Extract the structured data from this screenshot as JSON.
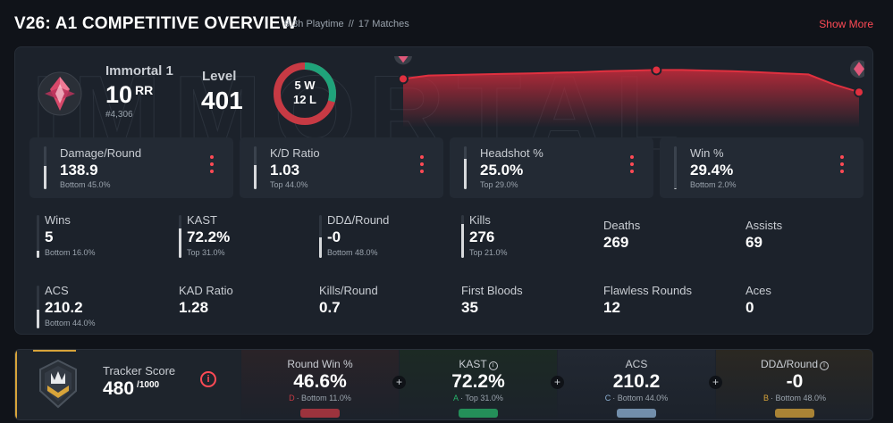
{
  "header": {
    "title": "V26: A1 COMPETITIVE OVERVIEW",
    "playtime": "9.3h Playtime",
    "separator": "//",
    "matches": "17 Matches",
    "show_more": "Show More"
  },
  "colors": {
    "accent": "#ff4a55",
    "win": "#1fa37a",
    "loss": "#c73a44",
    "gold": "#d8a43a"
  },
  "rank": {
    "name": "Immortal 1",
    "rr_value": "10",
    "rr_unit": "RR",
    "leaderboard": "#4,306",
    "level_label": "Level",
    "level_value": "401",
    "icon": "immortal-rank-icon"
  },
  "record": {
    "wins": "5 W",
    "losses": "12 L",
    "win_fraction": 0.294
  },
  "rank_history": [
    0.72,
    0.78,
    0.79,
    0.8,
    0.81,
    0.82,
    0.83,
    0.84,
    0.86,
    0.87,
    0.88,
    0.88,
    0.87,
    0.86,
    0.84,
    0.82,
    0.8,
    0.62,
    0.48
  ],
  "top_stats": [
    {
      "label": "Damage/Round",
      "value": "138.9",
      "sub": "Bottom 45.0%",
      "fill": 0.55
    },
    {
      "label": "K/D Ratio",
      "value": "1.03",
      "sub": "Top 44.0%",
      "fill": 0.56
    },
    {
      "label": "Headshot %",
      "value": "25.0%",
      "sub": "Top 29.0%",
      "fill": 0.71
    },
    {
      "label": "Win %",
      "value": "29.4%",
      "sub": "Bottom 2.0%",
      "fill": 0.02
    }
  ],
  "grid_stats": [
    {
      "label": "Wins",
      "value": "5",
      "sub": "Bottom 16.0%",
      "fill": 0.16,
      "bar": true
    },
    {
      "label": "KAST",
      "value": "72.2%",
      "sub": "Top 31.0%",
      "fill": 0.69,
      "bar": true
    },
    {
      "label": "DDΔ/Round",
      "value": "-0",
      "sub": "Bottom 48.0%",
      "fill": 0.48,
      "bar": true
    },
    {
      "label": "Kills",
      "value": "276",
      "sub": "Top 21.0%",
      "fill": 0.79,
      "bar": true
    },
    {
      "label": "Deaths",
      "value": "269",
      "sub": "",
      "bar": false
    },
    {
      "label": "Assists",
      "value": "69",
      "sub": "",
      "bar": false
    },
    {
      "label": "ACS",
      "value": "210.2",
      "sub": "Bottom 44.0%",
      "fill": 0.44,
      "bar": true
    },
    {
      "label": "KAD Ratio",
      "value": "1.28",
      "sub": "",
      "bar": false
    },
    {
      "label": "Kills/Round",
      "value": "0.7",
      "sub": "",
      "bar": false
    },
    {
      "label": "First Bloods",
      "value": "35",
      "sub": "",
      "bar": false
    },
    {
      "label": "Flawless Rounds",
      "value": "12",
      "sub": "",
      "bar": false
    },
    {
      "label": "Aces",
      "value": "0",
      "sub": "",
      "bar": false
    }
  ],
  "tracker": {
    "label": "Tracker Score",
    "value": "480",
    "max": "/1000",
    "info": "i",
    "metrics": [
      {
        "label": "Round Win %",
        "value": "46.6%",
        "grade": "D",
        "sub": "· Bottom 11.0%",
        "color": "#c73a44",
        "info": false
      },
      {
        "label": "KAST",
        "value": "72.2%",
        "grade": "A",
        "sub": "· Top 31.0%",
        "color": "#27b46a",
        "info": true
      },
      {
        "label": "ACS",
        "value": "210.2",
        "grade": "C",
        "sub": "· Bottom 44.0%",
        "color": "#8fb3d6",
        "info": false
      },
      {
        "label": "DDΔ/Round",
        "value": "-0",
        "grade": "B",
        "sub": "· Bottom 48.0%",
        "color": "#d8a43a",
        "info": true
      }
    ],
    "plus": "+"
  }
}
